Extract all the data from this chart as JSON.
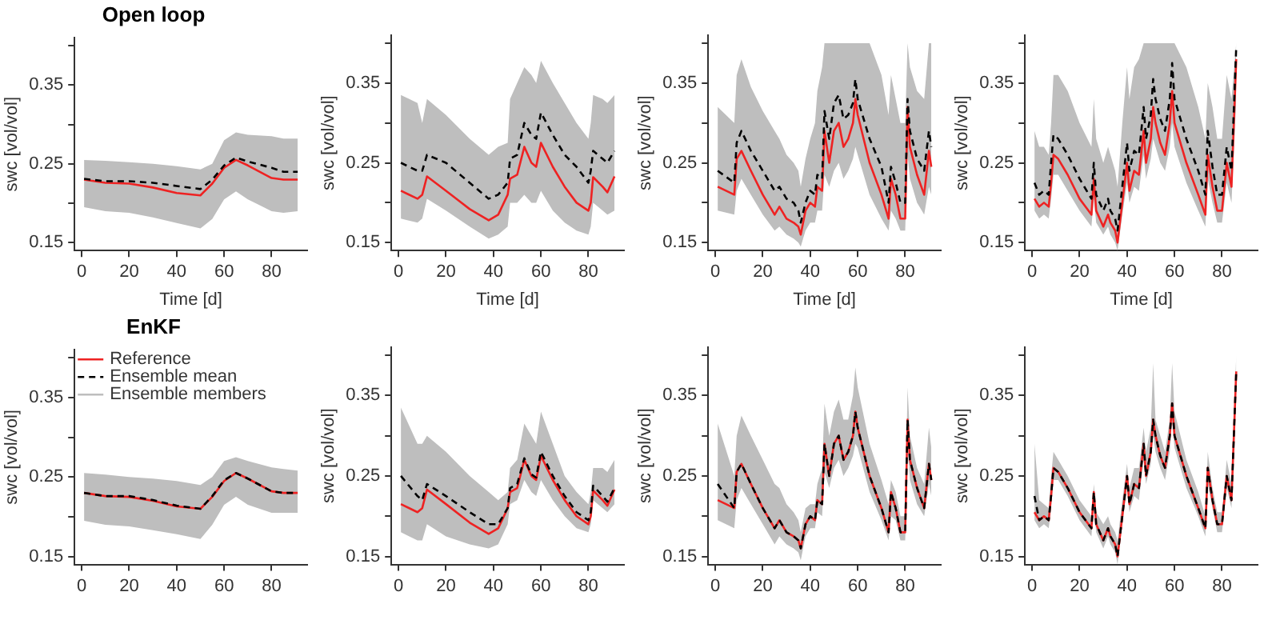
{
  "chart_data": [
    {
      "type": "line",
      "title": "Open loop",
      "xlabel": "Time [d]",
      "ylabel": "swc [vol/vol]",
      "marker": "none",
      "legend": false,
      "x": [
        1,
        10,
        20,
        30,
        40,
        50,
        55,
        60,
        65,
        70,
        80,
        85,
        91
      ],
      "xlim": [
        -3,
        95
      ],
      "xticks": [
        0,
        20,
        40,
        60,
        80
      ],
      "ylim": [
        0.14,
        0.41
      ],
      "yticks": [
        0.15,
        {
          "value": 0.2,
          "label": null
        },
        0.25,
        {
          "value": 0.3,
          "label": null
        },
        0.35,
        {
          "value": 0.4,
          "label": null
        }
      ],
      "series": [
        {
          "color": "#bebebe",
          "values": [
            null,
            null,
            null,
            null,
            null,
            null,
            null,
            null,
            null,
            null,
            null,
            null,
            null
          ],
          "lower": [
            0.195,
            0.19,
            0.188,
            0.182,
            0.175,
            0.168,
            0.18,
            0.205,
            0.215,
            0.205,
            0.19,
            0.188,
            0.19
          ],
          "upper": [
            0.255,
            0.254,
            0.252,
            0.25,
            0.247,
            0.243,
            0.25,
            0.28,
            0.29,
            0.287,
            0.285,
            0.282,
            0.282
          ]
        },
        {
          "color": "#ee2222",
          "line_style": "solid",
          "values": [
            0.23,
            0.226,
            0.225,
            0.22,
            0.213,
            0.21,
            0.225,
            0.245,
            0.255,
            0.248,
            0.232,
            0.23,
            0.23
          ]
        },
        {
          "color": "#000000",
          "line_style": "dashed",
          "values": [
            0.231,
            0.228,
            0.228,
            0.226,
            0.222,
            0.218,
            0.23,
            0.248,
            0.258,
            0.253,
            0.245,
            0.24,
            0.24
          ]
        }
      ]
    },
    {
      "type": "line",
      "xlabel": "Time [d]",
      "ylabel": "swc [vol/vol]",
      "marker": "none",
      "legend": false,
      "x": [
        1,
        8,
        10,
        12,
        20,
        30,
        38,
        42,
        46,
        47,
        50,
        53,
        56,
        58,
        60,
        65,
        70,
        75,
        80,
        81,
        82,
        86,
        88,
        91
      ],
      "xlim": [
        -3,
        95
      ],
      "xticks": [
        0,
        20,
        40,
        60,
        80
      ],
      "ylim": [
        0.14,
        0.41
      ],
      "yticks": [
        0.15,
        {
          "value": 0.2,
          "label": null
        },
        0.25,
        {
          "value": 0.3,
          "label": null
        },
        0.35,
        {
          "value": 0.4,
          "label": null
        }
      ],
      "series": [
        {
          "color": "#bebebe",
          "values": [
            null,
            null,
            null,
            null,
            null,
            null,
            null,
            null,
            null,
            null,
            null,
            null,
            null,
            null,
            null,
            null,
            null,
            null,
            null,
            null,
            null,
            null,
            null,
            null
          ],
          "lower": [
            0.18,
            0.175,
            0.18,
            0.205,
            0.19,
            0.17,
            0.155,
            0.16,
            0.17,
            0.2,
            0.2,
            0.21,
            0.2,
            0.2,
            0.215,
            0.19,
            0.175,
            0.165,
            0.16,
            0.17,
            0.2,
            0.19,
            0.185,
            0.19
          ],
          "upper": [
            0.335,
            0.325,
            0.3,
            0.33,
            0.31,
            0.28,
            0.26,
            0.27,
            0.275,
            0.33,
            0.35,
            0.37,
            0.36,
            0.35,
            0.378,
            0.35,
            0.325,
            0.3,
            0.28,
            0.3,
            0.335,
            0.33,
            0.325,
            0.335
          ]
        },
        {
          "color": "#ee2222",
          "line_style": "solid",
          "values": [
            0.215,
            0.205,
            0.21,
            0.233,
            0.215,
            0.192,
            0.178,
            0.185,
            0.21,
            0.23,
            0.235,
            0.27,
            0.25,
            0.245,
            0.275,
            0.245,
            0.22,
            0.2,
            0.19,
            0.2,
            0.232,
            0.22,
            0.213,
            0.233
          ]
        },
        {
          "color": "#000000",
          "line_style": "dashed",
          "values": [
            0.25,
            0.24,
            0.24,
            0.26,
            0.25,
            0.225,
            0.205,
            0.21,
            0.225,
            0.255,
            0.26,
            0.3,
            0.285,
            0.28,
            0.313,
            0.285,
            0.26,
            0.245,
            0.225,
            0.24,
            0.265,
            0.255,
            0.25,
            0.265
          ]
        }
      ]
    },
    {
      "type": "line",
      "xlabel": "Time [d]",
      "ylabel": "swc [vol/vol]",
      "marker": "none",
      "legend": false,
      "x": [
        1,
        8,
        9,
        11,
        15,
        20,
        25,
        27,
        30,
        33,
        35,
        36,
        38,
        40,
        42,
        43,
        45,
        46,
        48,
        50,
        52,
        54,
        56,
        58,
        59,
        60,
        65,
        70,
        73,
        74,
        76,
        78,
        80,
        81,
        82,
        85,
        88,
        90,
        91
      ],
      "xlim": [
        -3,
        95
      ],
      "xticks": [
        0,
        20,
        40,
        60,
        80
      ],
      "ylim": [
        0.14,
        0.41
      ],
      "yticks": [
        0.15,
        {
          "value": 0.2,
          "label": null
        },
        0.25,
        {
          "value": 0.3,
          "label": null
        },
        0.35,
        {
          "value": 0.4,
          "label": null
        }
      ],
      "series": [
        {
          "color": "#bebebe",
          "values": [
            null,
            null,
            null,
            null,
            null,
            null,
            null,
            null,
            null,
            null,
            null,
            null,
            null,
            null,
            null,
            null,
            null,
            null,
            null,
            null,
            null,
            null,
            null,
            null,
            null,
            null,
            null,
            null,
            null,
            null,
            null,
            null,
            null,
            null,
            null,
            null,
            null,
            null,
            null
          ],
          "lower": [
            0.19,
            0.185,
            0.215,
            0.23,
            0.21,
            0.185,
            0.165,
            0.17,
            0.16,
            0.155,
            0.15,
            0.145,
            0.165,
            0.175,
            0.175,
            0.19,
            0.19,
            0.235,
            0.22,
            0.24,
            0.25,
            0.23,
            0.24,
            0.255,
            0.27,
            0.26,
            0.21,
            0.18,
            0.165,
            0.19,
            0.18,
            0.165,
            0.165,
            0.26,
            0.23,
            0.2,
            0.185,
            0.22,
            0.21
          ],
          "upper": [
            0.32,
            0.3,
            0.36,
            0.38,
            0.345,
            0.315,
            0.29,
            0.28,
            0.26,
            0.25,
            0.24,
            0.22,
            0.255,
            0.28,
            0.3,
            0.34,
            0.37,
            0.4,
            0.4,
            0.4,
            0.4,
            0.4,
            0.4,
            0.4,
            0.4,
            0.4,
            0.4,
            0.36,
            0.31,
            0.36,
            0.33,
            0.3,
            0.3,
            0.4,
            0.37,
            0.34,
            0.33,
            0.4,
            0.4
          ]
        },
        {
          "color": "#ee2222",
          "line_style": "solid",
          "values": [
            0.22,
            0.21,
            0.255,
            0.265,
            0.24,
            0.21,
            0.185,
            0.195,
            0.18,
            0.175,
            0.17,
            0.16,
            0.19,
            0.2,
            0.195,
            0.22,
            0.215,
            0.29,
            0.25,
            0.29,
            0.3,
            0.27,
            0.28,
            0.3,
            0.33,
            0.31,
            0.25,
            0.21,
            0.18,
            0.23,
            0.21,
            0.18,
            0.18,
            0.32,
            0.27,
            0.235,
            0.21,
            0.265,
            0.245
          ]
        },
        {
          "color": "#000000",
          "line_style": "dashed",
          "values": [
            0.24,
            0.225,
            0.275,
            0.29,
            0.265,
            0.24,
            0.215,
            0.22,
            0.205,
            0.2,
            0.19,
            0.175,
            0.2,
            0.215,
            0.21,
            0.235,
            0.23,
            0.315,
            0.28,
            0.325,
            0.335,
            0.305,
            0.31,
            0.325,
            0.355,
            0.33,
            0.28,
            0.245,
            0.2,
            0.245,
            0.225,
            0.2,
            0.2,
            0.33,
            0.29,
            0.255,
            0.24,
            0.29,
            0.27
          ]
        }
      ]
    },
    {
      "type": "line",
      "xlabel": "Time [d]",
      "ylabel": "swc [vol/vol]",
      "marker": "none",
      "legend": false,
      "x": [
        1,
        3,
        5,
        7,
        8,
        9,
        11,
        15,
        20,
        25,
        26,
        27,
        30,
        32,
        33,
        35,
        36,
        38,
        40,
        41,
        43,
        45,
        47,
        48,
        50,
        51,
        52,
        54,
        56,
        58,
        59,
        60,
        65,
        70,
        73,
        74,
        76,
        78,
        80,
        82,
        84,
        86
      ],
      "xlim": [
        -3,
        95
      ],
      "xticks": [
        0,
        20,
        40,
        60,
        80
      ],
      "ylim": [
        0.14,
        0.41
      ],
      "yticks": [
        0.15,
        {
          "value": 0.2,
          "label": null
        },
        0.25,
        {
          "value": 0.3,
          "label": null
        },
        0.35,
        {
          "value": 0.4,
          "label": null
        }
      ],
      "series": [
        {
          "color": "#bebebe",
          "values": [
            null,
            null,
            null,
            null,
            null,
            null,
            null,
            null,
            null,
            null,
            null,
            null,
            null,
            null,
            null,
            null,
            null,
            null,
            null,
            null,
            null,
            null,
            null,
            null,
            null,
            null,
            null,
            null,
            null,
            null,
            null,
            null,
            null,
            null,
            null,
            null,
            null,
            null,
            null,
            null,
            null,
            null
          ],
          "lower": [
            0.19,
            0.18,
            0.185,
            0.18,
            0.205,
            0.235,
            0.235,
            0.215,
            0.19,
            0.17,
            0.205,
            0.175,
            0.16,
            0.17,
            0.16,
            0.15,
            0.14,
            0.185,
            0.225,
            0.2,
            0.22,
            0.215,
            0.26,
            0.23,
            0.255,
            0.28,
            0.27,
            0.25,
            0.24,
            0.27,
            0.3,
            0.27,
            0.225,
            0.19,
            0.17,
            0.23,
            0.2,
            0.175,
            0.175,
            0.225,
            0.2,
            0.33
          ],
          "upper": [
            0.29,
            0.27,
            0.27,
            0.26,
            0.3,
            0.36,
            0.36,
            0.34,
            0.3,
            0.27,
            0.33,
            0.28,
            0.25,
            0.27,
            0.26,
            0.24,
            0.22,
            0.3,
            0.37,
            0.33,
            0.37,
            0.38,
            0.4,
            0.4,
            0.4,
            0.4,
            0.4,
            0.4,
            0.4,
            0.4,
            0.4,
            0.4,
            0.37,
            0.32,
            0.28,
            0.35,
            0.32,
            0.28,
            0.28,
            0.36,
            0.33,
            0.4
          ]
        },
        {
          "color": "#ee2222",
          "line_style": "solid",
          "values": [
            0.205,
            0.195,
            0.2,
            0.195,
            0.225,
            0.26,
            0.255,
            0.235,
            0.205,
            0.185,
            0.23,
            0.19,
            0.17,
            0.185,
            0.175,
            0.165,
            0.15,
            0.2,
            0.25,
            0.215,
            0.24,
            0.235,
            0.29,
            0.25,
            0.28,
            0.32,
            0.3,
            0.275,
            0.26,
            0.3,
            0.34,
            0.3,
            0.25,
            0.21,
            0.185,
            0.26,
            0.22,
            0.19,
            0.19,
            0.25,
            0.22,
            0.38
          ]
        },
        {
          "color": "#000000",
          "line_style": "dashed",
          "values": [
            0.225,
            0.21,
            0.215,
            0.21,
            0.25,
            0.285,
            0.28,
            0.26,
            0.23,
            0.205,
            0.25,
            0.21,
            0.19,
            0.205,
            0.19,
            0.18,
            0.165,
            0.22,
            0.275,
            0.24,
            0.265,
            0.26,
            0.32,
            0.28,
            0.31,
            0.355,
            0.33,
            0.305,
            0.29,
            0.33,
            0.375,
            0.33,
            0.28,
            0.24,
            0.21,
            0.29,
            0.245,
            0.21,
            0.21,
            0.27,
            0.24,
            0.395
          ]
        }
      ]
    },
    {
      "type": "line",
      "title": "EnKF",
      "ylabel": "swc [vol/vol]",
      "marker": "none",
      "legend": "top left",
      "x": [
        1,
        10,
        20,
        30,
        40,
        50,
        55,
        60,
        65,
        70,
        80,
        85,
        91
      ],
      "xlim": [
        -3,
        95
      ],
      "xticks": [
        0,
        20,
        40,
        60,
        80
      ],
      "ylim": [
        0.14,
        0.41
      ],
      "yticks": [
        0.15,
        {
          "value": 0.2,
          "label": null
        },
        0.25,
        {
          "value": 0.3,
          "label": null
        },
        0.35,
        {
          "value": 0.4,
          "label": null
        }
      ],
      "series": [
        {
          "name": "Ensemble members",
          "color": "#bebebe",
          "line_style": "solid",
          "values": [
            null,
            null,
            null,
            null,
            null,
            null,
            null,
            null,
            null,
            null,
            null,
            null,
            null
          ],
          "lower": [
            0.195,
            0.19,
            0.188,
            0.183,
            0.178,
            0.172,
            0.19,
            0.215,
            0.225,
            0.215,
            0.205,
            0.205,
            0.205
          ],
          "upper": [
            0.255,
            0.253,
            0.25,
            0.248,
            0.245,
            0.24,
            0.25,
            0.27,
            0.275,
            0.27,
            0.262,
            0.26,
            0.258
          ]
        },
        {
          "name": "Reference",
          "color": "#ee2222",
          "line_style": "solid",
          "values": [
            0.23,
            0.226,
            0.225,
            0.22,
            0.213,
            0.21,
            0.225,
            0.245,
            0.255,
            0.248,
            0.232,
            0.23,
            0.23
          ]
        },
        {
          "name": "Ensemble mean",
          "color": "#000000",
          "line_style": "dashed",
          "values": [
            0.23,
            0.226,
            0.226,
            0.221,
            0.214,
            0.21,
            0.226,
            0.246,
            0.255,
            0.248,
            0.232,
            0.23,
            0.23
          ]
        }
      ]
    },
    {
      "type": "line",
      "ylabel": "swc [vol/vol]",
      "marker": "none",
      "legend": false,
      "x": [
        1,
        8,
        10,
        12,
        20,
        30,
        38,
        42,
        46,
        47,
        50,
        53,
        56,
        58,
        60,
        65,
        70,
        75,
        80,
        81,
        82,
        86,
        88,
        91
      ],
      "xlim": [
        -3,
        95
      ],
      "xticks": [
        0,
        20,
        40,
        60,
        80
      ],
      "ylim": [
        0.14,
        0.41
      ],
      "yticks": [
        0.15,
        {
          "value": 0.2,
          "label": null
        },
        0.25,
        {
          "value": 0.3,
          "label": null
        },
        0.35,
        {
          "value": 0.4,
          "label": null
        }
      ],
      "series": [
        {
          "color": "#bebebe",
          "values": [
            null,
            null,
            null,
            null,
            null,
            null,
            null,
            null,
            null,
            null,
            null,
            null,
            null,
            null,
            null,
            null,
            null,
            null,
            null,
            null,
            null,
            null,
            null,
            null
          ],
          "lower": [
            0.18,
            0.17,
            0.17,
            0.19,
            0.175,
            0.165,
            0.16,
            0.165,
            0.19,
            0.215,
            0.22,
            0.245,
            0.23,
            0.225,
            0.245,
            0.22,
            0.2,
            0.185,
            0.18,
            0.19,
            0.22,
            0.21,
            0.205,
            0.215
          ],
          "upper": [
            0.335,
            0.29,
            0.29,
            0.3,
            0.28,
            0.25,
            0.23,
            0.22,
            0.23,
            0.26,
            0.27,
            0.315,
            0.3,
            0.29,
            0.33,
            0.29,
            0.25,
            0.23,
            0.215,
            0.23,
            0.26,
            0.26,
            0.255,
            0.27
          ]
        },
        {
          "color": "#ee2222",
          "line_style": "solid",
          "values": [
            0.215,
            0.205,
            0.21,
            0.233,
            0.215,
            0.192,
            0.178,
            0.185,
            0.21,
            0.23,
            0.235,
            0.27,
            0.25,
            0.245,
            0.275,
            0.245,
            0.22,
            0.2,
            0.19,
            0.2,
            0.232,
            0.22,
            0.213,
            0.233
          ]
        },
        {
          "color": "#000000",
          "line_style": "dashed",
          "values": [
            0.25,
            0.225,
            0.22,
            0.24,
            0.225,
            0.205,
            0.19,
            0.19,
            0.21,
            0.235,
            0.24,
            0.272,
            0.252,
            0.248,
            0.28,
            0.25,
            0.225,
            0.205,
            0.195,
            0.205,
            0.238,
            0.225,
            0.218,
            0.235
          ]
        }
      ]
    },
    {
      "type": "line",
      "ylabel": "swc [vol/vol]",
      "marker": "none",
      "legend": false,
      "x": [
        1,
        8,
        9,
        11,
        15,
        20,
        25,
        27,
        30,
        33,
        35,
        36,
        38,
        40,
        42,
        43,
        45,
        46,
        48,
        50,
        52,
        54,
        56,
        58,
        59,
        60,
        65,
        70,
        73,
        74,
        76,
        78,
        80,
        81,
        82,
        85,
        88,
        90,
        91
      ],
      "xlim": [
        -3,
        95
      ],
      "xticks": [
        0,
        20,
        40,
        60,
        80
      ],
      "ylim": [
        0.14,
        0.41
      ],
      "yticks": [
        0.15,
        {
          "value": 0.2,
          "label": null
        },
        0.25,
        {
          "value": 0.3,
          "label": null
        },
        0.35,
        {
          "value": 0.4,
          "label": null
        }
      ],
      "series": [
        {
          "color": "#bebebe",
          "values": [
            null,
            null,
            null,
            null,
            null,
            null,
            null,
            null,
            null,
            null,
            null,
            null,
            null,
            null,
            null,
            null,
            null,
            null,
            null,
            null,
            null,
            null,
            null,
            null,
            null,
            null,
            null,
            null,
            null,
            null,
            null,
            null,
            null,
            null,
            null,
            null,
            null,
            null,
            null
          ],
          "lower": [
            0.195,
            0.185,
            0.22,
            0.235,
            0.215,
            0.19,
            0.165,
            0.175,
            0.165,
            0.16,
            0.155,
            0.145,
            0.175,
            0.185,
            0.185,
            0.205,
            0.2,
            0.255,
            0.235,
            0.26,
            0.27,
            0.25,
            0.26,
            0.275,
            0.29,
            0.285,
            0.23,
            0.195,
            0.17,
            0.2,
            0.195,
            0.17,
            0.17,
            0.285,
            0.245,
            0.215,
            0.2,
            0.24,
            0.225
          ],
          "upper": [
            0.315,
            0.25,
            0.3,
            0.325,
            0.3,
            0.27,
            0.24,
            0.235,
            0.215,
            0.205,
            0.195,
            0.18,
            0.21,
            0.215,
            0.215,
            0.24,
            0.26,
            0.34,
            0.3,
            0.33,
            0.345,
            0.32,
            0.32,
            0.35,
            0.385,
            0.36,
            0.29,
            0.245,
            0.215,
            0.245,
            0.23,
            0.2,
            0.2,
            0.36,
            0.3,
            0.26,
            0.24,
            0.31,
            0.285
          ]
        },
        {
          "color": "#ee2222",
          "line_style": "solid",
          "values": [
            0.22,
            0.21,
            0.255,
            0.265,
            0.24,
            0.21,
            0.185,
            0.195,
            0.18,
            0.175,
            0.17,
            0.16,
            0.19,
            0.2,
            0.195,
            0.22,
            0.215,
            0.29,
            0.25,
            0.29,
            0.3,
            0.27,
            0.28,
            0.3,
            0.33,
            0.31,
            0.25,
            0.21,
            0.18,
            0.23,
            0.21,
            0.18,
            0.18,
            0.32,
            0.27,
            0.235,
            0.21,
            0.265,
            0.245
          ]
        },
        {
          "color": "#000000",
          "line_style": "dashed",
          "values": [
            0.24,
            0.21,
            0.255,
            0.265,
            0.24,
            0.21,
            0.185,
            0.195,
            0.18,
            0.175,
            0.17,
            0.16,
            0.19,
            0.2,
            0.195,
            0.22,
            0.215,
            0.29,
            0.25,
            0.29,
            0.3,
            0.27,
            0.28,
            0.3,
            0.33,
            0.31,
            0.25,
            0.21,
            0.18,
            0.23,
            0.21,
            0.18,
            0.18,
            0.32,
            0.27,
            0.235,
            0.21,
            0.265,
            0.245
          ]
        }
      ]
    },
    {
      "type": "line",
      "ylabel": "swc [vol/vol]",
      "marker": "none",
      "legend": false,
      "x": [
        1,
        3,
        5,
        7,
        8,
        9,
        11,
        15,
        20,
        25,
        26,
        27,
        30,
        32,
        33,
        35,
        36,
        38,
        40,
        41,
        43,
        45,
        47,
        48,
        50,
        51,
        52,
        54,
        56,
        58,
        59,
        60,
        65,
        70,
        73,
        74,
        76,
        78,
        80,
        82,
        84,
        86
      ],
      "xlim": [
        -3,
        95
      ],
      "xticks": [
        0,
        20,
        40,
        60,
        80
      ],
      "ylim": [
        0.14,
        0.41
      ],
      "yticks": [
        0.15,
        {
          "value": 0.2,
          "label": null
        },
        0.25,
        {
          "value": 0.3,
          "label": null
        },
        0.35,
        {
          "value": 0.4,
          "label": null
        }
      ],
      "series": [
        {
          "color": "#bebebe",
          "values": [
            null,
            null,
            null,
            null,
            null,
            null,
            null,
            null,
            null,
            null,
            null,
            null,
            null,
            null,
            null,
            null,
            null,
            null,
            null,
            null,
            null,
            null,
            null,
            null,
            null,
            null,
            null,
            null,
            null,
            null,
            null,
            null,
            null,
            null,
            null,
            null,
            null,
            null,
            null,
            null,
            null,
            null
          ],
          "lower": [
            0.195,
            0.185,
            0.19,
            0.185,
            0.21,
            0.245,
            0.245,
            0.225,
            0.195,
            0.175,
            0.215,
            0.18,
            0.16,
            0.175,
            0.165,
            0.155,
            0.14,
            0.19,
            0.235,
            0.205,
            0.225,
            0.22,
            0.27,
            0.24,
            0.265,
            0.3,
            0.28,
            0.26,
            0.245,
            0.28,
            0.32,
            0.285,
            0.235,
            0.2,
            0.175,
            0.24,
            0.21,
            0.18,
            0.18,
            0.235,
            0.21,
            0.36
          ],
          "upper": [
            0.29,
            0.22,
            0.215,
            0.21,
            0.25,
            0.28,
            0.27,
            0.25,
            0.22,
            0.2,
            0.24,
            0.205,
            0.19,
            0.2,
            0.19,
            0.18,
            0.17,
            0.22,
            0.265,
            0.235,
            0.26,
            0.26,
            0.31,
            0.28,
            0.31,
            0.39,
            0.32,
            0.3,
            0.28,
            0.32,
            0.39,
            0.33,
            0.27,
            0.23,
            0.2,
            0.28,
            0.235,
            0.205,
            0.205,
            0.27,
            0.24,
            0.4
          ]
        },
        {
          "color": "#ee2222",
          "line_style": "solid",
          "values": [
            0.205,
            0.195,
            0.2,
            0.195,
            0.225,
            0.26,
            0.255,
            0.235,
            0.205,
            0.185,
            0.23,
            0.19,
            0.17,
            0.185,
            0.175,
            0.165,
            0.15,
            0.2,
            0.25,
            0.215,
            0.24,
            0.235,
            0.29,
            0.25,
            0.28,
            0.32,
            0.3,
            0.275,
            0.26,
            0.3,
            0.34,
            0.3,
            0.25,
            0.21,
            0.185,
            0.26,
            0.22,
            0.19,
            0.19,
            0.25,
            0.22,
            0.38
          ]
        },
        {
          "color": "#000000",
          "line_style": "dashed",
          "values": [
            0.225,
            0.195,
            0.2,
            0.195,
            0.225,
            0.26,
            0.255,
            0.235,
            0.205,
            0.185,
            0.23,
            0.19,
            0.17,
            0.185,
            0.175,
            0.165,
            0.15,
            0.2,
            0.25,
            0.215,
            0.24,
            0.235,
            0.29,
            0.25,
            0.28,
            0.32,
            0.3,
            0.275,
            0.26,
            0.3,
            0.34,
            0.3,
            0.25,
            0.21,
            0.185,
            0.26,
            0.22,
            0.19,
            0.19,
            0.25,
            0.22,
            0.38
          ]
        }
      ]
    }
  ]
}
